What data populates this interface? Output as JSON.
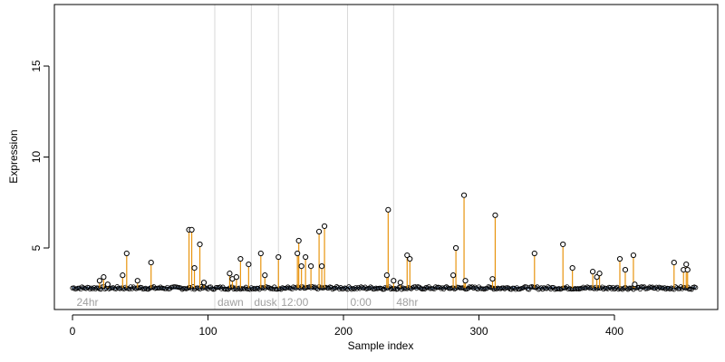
{
  "chart_data": {
    "type": "scatter",
    "title": "",
    "xlabel": "Sample index",
    "ylabel": "Expression",
    "xlim": [
      0,
      460
    ],
    "ylim": [
      2.5,
      18
    ],
    "x_ticks": [
      0,
      100,
      200,
      300,
      400
    ],
    "y_ticks": [
      5,
      10,
      15
    ],
    "grid": false,
    "legend": "none",
    "colors": {
      "points": "#000000",
      "stems": "#e8940e",
      "baseline": "#87a9d6",
      "dividers": "#d9d9d9",
      "phase_labels": "#a0a0a0"
    },
    "baseline_value": 2.8,
    "phase_markers": [
      {
        "label": "24hr",
        "x": 1
      },
      {
        "label": "dawn",
        "x": 105
      },
      {
        "label": "dusk",
        "x": 132
      },
      {
        "label": "12:00",
        "x": 152
      },
      {
        "label": "0:00",
        "x": 203
      },
      {
        "label": "48hr",
        "x": 237
      }
    ],
    "highlighted_points": [
      {
        "x": 20,
        "y": 3.2
      },
      {
        "x": 23,
        "y": 3.4
      },
      {
        "x": 26,
        "y": 3.0
      },
      {
        "x": 37,
        "y": 3.5
      },
      {
        "x": 40,
        "y": 4.7
      },
      {
        "x": 48,
        "y": 3.2
      },
      {
        "x": 58,
        "y": 4.2
      },
      {
        "x": 86,
        "y": 6.0
      },
      {
        "x": 88,
        "y": 6.0
      },
      {
        "x": 90,
        "y": 3.9
      },
      {
        "x": 94,
        "y": 5.2
      },
      {
        "x": 97,
        "y": 3.1
      },
      {
        "x": 116,
        "y": 3.6
      },
      {
        "x": 118,
        "y": 3.3
      },
      {
        "x": 121,
        "y": 3.4
      },
      {
        "x": 124,
        "y": 4.4
      },
      {
        "x": 130,
        "y": 4.1
      },
      {
        "x": 139,
        "y": 4.7
      },
      {
        "x": 142,
        "y": 3.5
      },
      {
        "x": 152,
        "y": 4.5
      },
      {
        "x": 166,
        "y": 4.7
      },
      {
        "x": 167,
        "y": 5.4
      },
      {
        "x": 169,
        "y": 4.0
      },
      {
        "x": 172,
        "y": 4.5
      },
      {
        "x": 176,
        "y": 4.0
      },
      {
        "x": 182,
        "y": 5.9
      },
      {
        "x": 184,
        "y": 4.0
      },
      {
        "x": 186,
        "y": 6.2
      },
      {
        "x": 232,
        "y": 3.5
      },
      {
        "x": 233,
        "y": 7.1
      },
      {
        "x": 237,
        "y": 3.2
      },
      {
        "x": 242,
        "y": 3.1
      },
      {
        "x": 247,
        "y": 4.6
      },
      {
        "x": 249,
        "y": 4.4
      },
      {
        "x": 281,
        "y": 3.5
      },
      {
        "x": 283,
        "y": 5.0
      },
      {
        "x": 289,
        "y": 7.9
      },
      {
        "x": 290,
        "y": 3.2
      },
      {
        "x": 310,
        "y": 3.3
      },
      {
        "x": 312,
        "y": 6.8
      },
      {
        "x": 341,
        "y": 4.7
      },
      {
        "x": 362,
        "y": 5.2
      },
      {
        "x": 369,
        "y": 3.9
      },
      {
        "x": 384,
        "y": 3.7
      },
      {
        "x": 387,
        "y": 3.4
      },
      {
        "x": 389,
        "y": 3.6
      },
      {
        "x": 404,
        "y": 4.4
      },
      {
        "x": 408,
        "y": 3.8
      },
      {
        "x": 414,
        "y": 4.6
      },
      {
        "x": 415,
        "y": 3.0
      },
      {
        "x": 444,
        "y": 4.2
      },
      {
        "x": 451,
        "y": 3.8
      },
      {
        "x": 453,
        "y": 4.1
      },
      {
        "x": 454,
        "y": 3.8
      }
    ],
    "baseline_points": {
      "x_start": 0,
      "x_end": 460,
      "step": 1,
      "y_center": 2.8,
      "y_spread": 0.08
    }
  }
}
